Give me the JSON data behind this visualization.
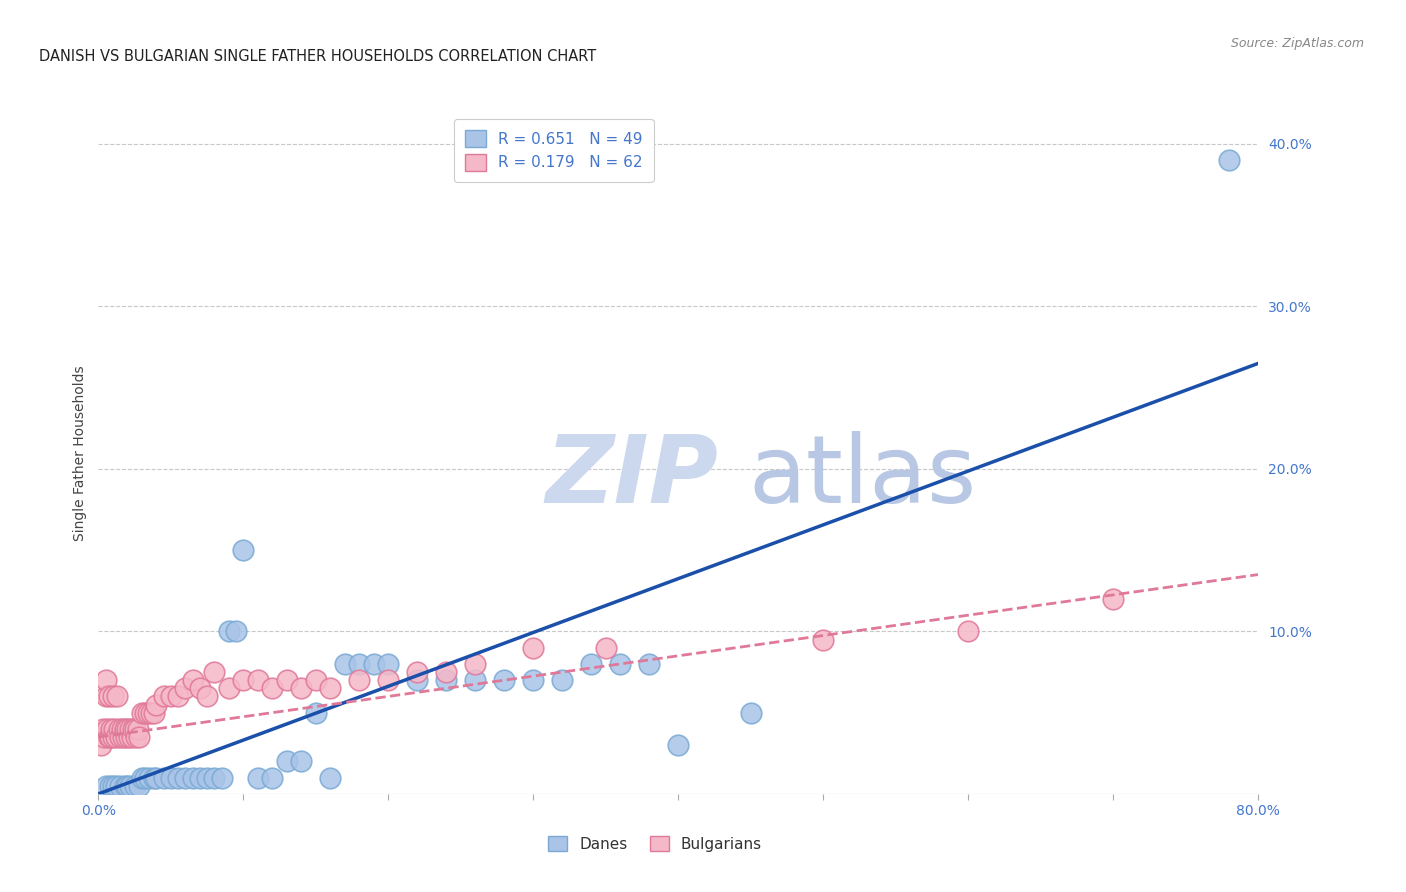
{
  "title": "DANISH VS BULGARIAN SINGLE FATHER HOUSEHOLDS CORRELATION CHART",
  "source": "Source: ZipAtlas.com",
  "ylabel": "Single Father Households",
  "background_color": "#ffffff",
  "grid_color": "#c8c8c8",
  "dane_color": "#aac4e8",
  "dane_edge_color": "#7aaad4",
  "bulg_color": "#f5b8c8",
  "bulg_edge_color": "#e07898",
  "dane_line_color": "#1a4faa",
  "bulg_line_color": "#e07898",
  "legend_dane_label": "R = 0.651   N = 49",
  "legend_bulg_label": "R = 0.179   N = 62",
  "xlim": [
    0.0,
    0.8
  ],
  "ylim": [
    0.0,
    0.42
  ],
  "watermark_zip": "ZIP",
  "watermark_atlas": "atlas",
  "danes_x": [
    0.005,
    0.008,
    0.01,
    0.012,
    0.015,
    0.018,
    0.02,
    0.022,
    0.025,
    0.028,
    0.03,
    0.032,
    0.035,
    0.038,
    0.04,
    0.045,
    0.05,
    0.055,
    0.06,
    0.065,
    0.07,
    0.075,
    0.08,
    0.085,
    0.09,
    0.095,
    0.1,
    0.11,
    0.12,
    0.13,
    0.14,
    0.15,
    0.16,
    0.17,
    0.18,
    0.19,
    0.2,
    0.22,
    0.24,
    0.26,
    0.28,
    0.3,
    0.32,
    0.34,
    0.36,
    0.38,
    0.4,
    0.45,
    0.78
  ],
  "danes_y": [
    0.005,
    0.005,
    0.005,
    0.005,
    0.005,
    0.005,
    0.005,
    0.005,
    0.005,
    0.005,
    0.01,
    0.01,
    0.01,
    0.01,
    0.01,
    0.01,
    0.01,
    0.01,
    0.01,
    0.01,
    0.01,
    0.01,
    0.01,
    0.01,
    0.1,
    0.1,
    0.15,
    0.01,
    0.01,
    0.02,
    0.02,
    0.05,
    0.01,
    0.08,
    0.08,
    0.08,
    0.08,
    0.07,
    0.07,
    0.07,
    0.07,
    0.07,
    0.07,
    0.08,
    0.08,
    0.08,
    0.03,
    0.05,
    0.39
  ],
  "bulgarians_x": [
    0.002,
    0.003,
    0.004,
    0.005,
    0.005,
    0.006,
    0.007,
    0.007,
    0.008,
    0.009,
    0.01,
    0.01,
    0.011,
    0.012,
    0.013,
    0.014,
    0.015,
    0.016,
    0.017,
    0.018,
    0.019,
    0.02,
    0.021,
    0.022,
    0.023,
    0.024,
    0.025,
    0.026,
    0.027,
    0.028,
    0.03,
    0.032,
    0.034,
    0.036,
    0.038,
    0.04,
    0.045,
    0.05,
    0.055,
    0.06,
    0.065,
    0.07,
    0.075,
    0.08,
    0.09,
    0.1,
    0.11,
    0.12,
    0.13,
    0.14,
    0.15,
    0.16,
    0.18,
    0.2,
    0.22,
    0.24,
    0.26,
    0.3,
    0.35,
    0.5,
    0.6,
    0.7
  ],
  "bulgarians_y": [
    0.03,
    0.04,
    0.035,
    0.06,
    0.07,
    0.04,
    0.035,
    0.06,
    0.035,
    0.04,
    0.035,
    0.06,
    0.04,
    0.035,
    0.06,
    0.04,
    0.035,
    0.04,
    0.035,
    0.04,
    0.035,
    0.04,
    0.035,
    0.04,
    0.035,
    0.04,
    0.04,
    0.035,
    0.04,
    0.035,
    0.05,
    0.05,
    0.05,
    0.05,
    0.05,
    0.055,
    0.06,
    0.06,
    0.06,
    0.065,
    0.07,
    0.065,
    0.06,
    0.075,
    0.065,
    0.07,
    0.07,
    0.065,
    0.07,
    0.065,
    0.07,
    0.065,
    0.07,
    0.07,
    0.075,
    0.075,
    0.08,
    0.09,
    0.09,
    0.095,
    0.1,
    0.12
  ],
  "dane_line_x": [
    0.0,
    0.8
  ],
  "dane_line_y": [
    0.0,
    0.265
  ],
  "bulg_line_x": [
    0.0,
    0.8
  ],
  "bulg_line_y": [
    0.035,
    0.135
  ]
}
